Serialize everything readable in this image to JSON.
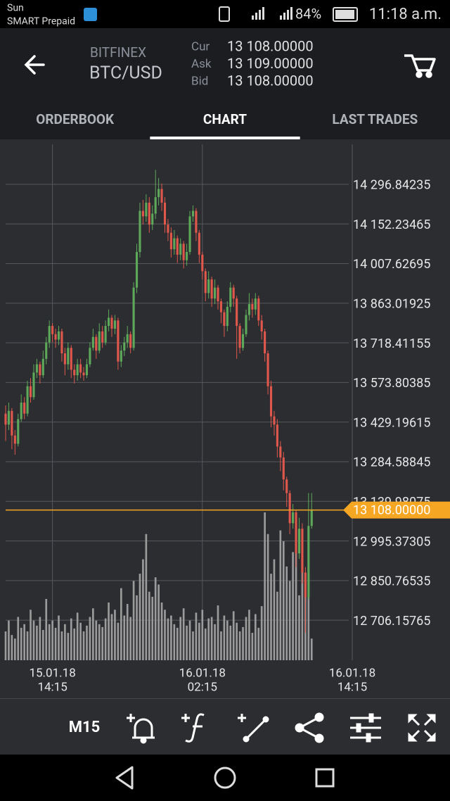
{
  "status_bar": {
    "carrier": "Sun",
    "network": "SMART Prepaid",
    "battery": "84%",
    "time": "11:18 a.m."
  },
  "header": {
    "exchange": "BITFINEX",
    "pair": "BTC/USD",
    "quotes": [
      {
        "label": "Cur",
        "value": "13 108.00000"
      },
      {
        "label": "Ask",
        "value": "13 109.00000"
      },
      {
        "label": "Bid",
        "value": "13 108.00000"
      }
    ]
  },
  "tabs": {
    "items": [
      "ORDERBOOK",
      "CHART",
      "LAST TRADES"
    ],
    "active": 1
  },
  "chart_data": {
    "type": "candlestick",
    "open": [
      13460,
      13420,
      13470,
      13380,
      13350,
      13440,
      13500,
      13460,
      13560,
      13520,
      13610,
      13640,
      13600,
      13660,
      13720,
      13780,
      13750,
      13730,
      13760,
      13680,
      13640,
      13700,
      13620,
      13600,
      13640,
      13610,
      13600,
      13640,
      13700,
      13740,
      13690,
      13760,
      13720,
      13780,
      13810,
      13770,
      13800,
      13650,
      13690,
      13720,
      13750,
      13700,
      13920,
      14050,
      14200,
      14180,
      14230,
      14150,
      14190,
      14250,
      14280,
      14230,
      14150,
      14120,
      14060,
      14100,
      14040,
      14080,
      14020,
      14050,
      14180,
      14200,
      14120,
      14040,
      13980,
      13900,
      13950,
      13880,
      13920,
      13870,
      13830,
      13780,
      13850,
      13920,
      13880,
      13780,
      13700,
      13750,
      13820,
      13860,
      13840,
      13880,
      13800,
      13760,
      13680,
      13560,
      13450,
      13420,
      13340,
      13300,
      13220,
      13170,
      13060,
      13100,
      12950,
      13040,
      12880,
      12790,
      13050
    ],
    "high": [
      13490,
      13500,
      13480,
      13400,
      13460,
      13530,
      13520,
      13580,
      13590,
      13640,
      13660,
      13650,
      13690,
      13740,
      13800,
      13790,
      13770,
      13780,
      13770,
      13700,
      13720,
      13710,
      13640,
      13660,
      13660,
      13630,
      13660,
      13720,
      13770,
      13750,
      13790,
      13780,
      13800,
      13840,
      13820,
      13820,
      13810,
      13710,
      13740,
      13780,
      13760,
      13940,
      14080,
      14230,
      14240,
      14260,
      14250,
      14220,
      14350,
      14320,
      14300,
      14250,
      14170,
      14140,
      14130,
      14110,
      14100,
      14090,
      14080,
      14200,
      14220,
      14210,
      14130,
      14050,
      13990,
      13980,
      13960,
      13950,
      13930,
      13880,
      13840,
      13870,
      13940,
      13930,
      13890,
      13790,
      13770,
      13840,
      13900,
      13880,
      13900,
      13890,
      13820,
      13770,
      13690,
      13580,
      13470,
      13440,
      13360,
      13320,
      13230,
      13180,
      13130,
      13110,
      13080,
      13060,
      12900,
      13170,
      13170
    ],
    "low": [
      13360,
      13400,
      13330,
      13310,
      13340,
      13430,
      13440,
      13450,
      13500,
      13510,
      13590,
      13570,
      13590,
      13640,
      13700,
      13720,
      13700,
      13710,
      13650,
      13600,
      13620,
      13590,
      13570,
      13580,
      13590,
      13580,
      13590,
      13630,
      13690,
      13660,
      13680,
      13700,
      13710,
      13760,
      13740,
      13750,
      13620,
      13630,
      13670,
      13700,
      13680,
      13690,
      13900,
      14030,
      14150,
      14160,
      14120,
      14130,
      14170,
      14220,
      14200,
      14120,
      14090,
      14030,
      14040,
      14010,
      14020,
      13990,
      14000,
      14040,
      14160,
      14090,
      14010,
      13950,
      13870,
      13880,
      13850,
      13860,
      13840,
      13790,
      13740,
      13760,
      13830,
      13850,
      13660,
      13680,
      13690,
      13740,
      13800,
      13810,
      13820,
      13780,
      13730,
      13650,
      13530,
      13410,
      13380,
      13300,
      13250,
      13180,
      13120,
      13020,
      13040,
      12900,
      12930,
      12840,
      12660,
      12780,
      13040
    ],
    "close": [
      13420,
      13470,
      13380,
      13350,
      13440,
      13500,
      13460,
      13560,
      13520,
      13610,
      13640,
      13600,
      13660,
      13720,
      13780,
      13750,
      13730,
      13760,
      13680,
      13640,
      13700,
      13620,
      13600,
      13640,
      13610,
      13600,
      13640,
      13700,
      13740,
      13690,
      13760,
      13720,
      13780,
      13810,
      13770,
      13800,
      13650,
      13690,
      13720,
      13750,
      13700,
      13920,
      14050,
      14200,
      14180,
      14230,
      14150,
      14190,
      14250,
      14280,
      14230,
      14150,
      14120,
      14060,
      14100,
      14040,
      14080,
      14020,
      14050,
      14180,
      14200,
      14120,
      14040,
      13980,
      13900,
      13950,
      13880,
      13920,
      13870,
      13830,
      13780,
      13850,
      13920,
      13880,
      13780,
      13700,
      13750,
      13820,
      13860,
      13840,
      13880,
      13800,
      13760,
      13680,
      13560,
      13450,
      13420,
      13340,
      13300,
      13220,
      13170,
      13060,
      13100,
      12950,
      13040,
      12880,
      12790,
      13050,
      13108
    ],
    "volume": [
      40,
      55,
      35,
      30,
      60,
      45,
      50,
      40,
      70,
      55,
      48,
      60,
      42,
      85,
      50,
      55,
      45,
      62,
      40,
      50,
      38,
      58,
      44,
      66,
      52,
      40,
      48,
      60,
      72,
      55,
      50,
      46,
      58,
      80,
      64,
      70,
      52,
      100,
      62,
      78,
      60,
      110,
      90,
      120,
      140,
      175,
      95,
      88,
      115,
      105,
      80,
      70,
      58,
      62,
      50,
      45,
      60,
      72,
      48,
      55,
      40,
      66,
      52,
      70,
      44,
      58,
      60,
      50,
      76,
      40,
      62,
      55,
      48,
      68,
      52,
      40,
      46,
      60,
      70,
      38,
      64,
      45,
      75,
      205,
      175,
      120,
      140,
      95,
      180,
      165,
      130,
      110,
      150,
      200,
      90,
      145,
      110,
      120,
      30
    ],
    "xlim": [
      -1.8,
      142.3
    ],
    "xticks": [
      {
        "value": 15,
        "label": [
          "15.01.18",
          "14:15"
        ]
      },
      {
        "value": 63,
        "label": [
          "16.01.18",
          "02:15"
        ]
      },
      {
        "value": 111,
        "label": [
          "16.01.18",
          "14:15"
        ]
      }
    ],
    "ylim": [
      12560,
      14443
    ],
    "yticks": [
      {
        "value": 14296.84235,
        "label": "14 296.84235"
      },
      {
        "value": 14152.23465,
        "label": "14 152.23465"
      },
      {
        "value": 14007.62695,
        "label": "14 007.62695"
      },
      {
        "value": 13863.01925,
        "label": "13 863.01925"
      },
      {
        "value": 13718.41155,
        "label": "13 718.41155"
      },
      {
        "value": 13573.80385,
        "label": "13 573.80385"
      },
      {
        "value": 13429.19615,
        "label": "13 429.19615"
      },
      {
        "value": 13284.58845,
        "label": "13 284.58845"
      },
      {
        "value": 13139.98075,
        "label": "13 139.98075"
      },
      {
        "value": 12995.37305,
        "label": "12 995.37305"
      },
      {
        "value": 12850.76535,
        "label": "12 850.76535"
      },
      {
        "value": 12706.15765,
        "label": "12 706.15765"
      }
    ],
    "current_price": {
      "value": 13108,
      "label": "13 108.00000"
    },
    "grid": true,
    "colors": {
      "up": "#5ea85a",
      "down": "#e0574c",
      "volume": "#9b9b9b",
      "price_line": "#f5a623"
    }
  },
  "toolbar": {
    "timeframe": "M15"
  }
}
